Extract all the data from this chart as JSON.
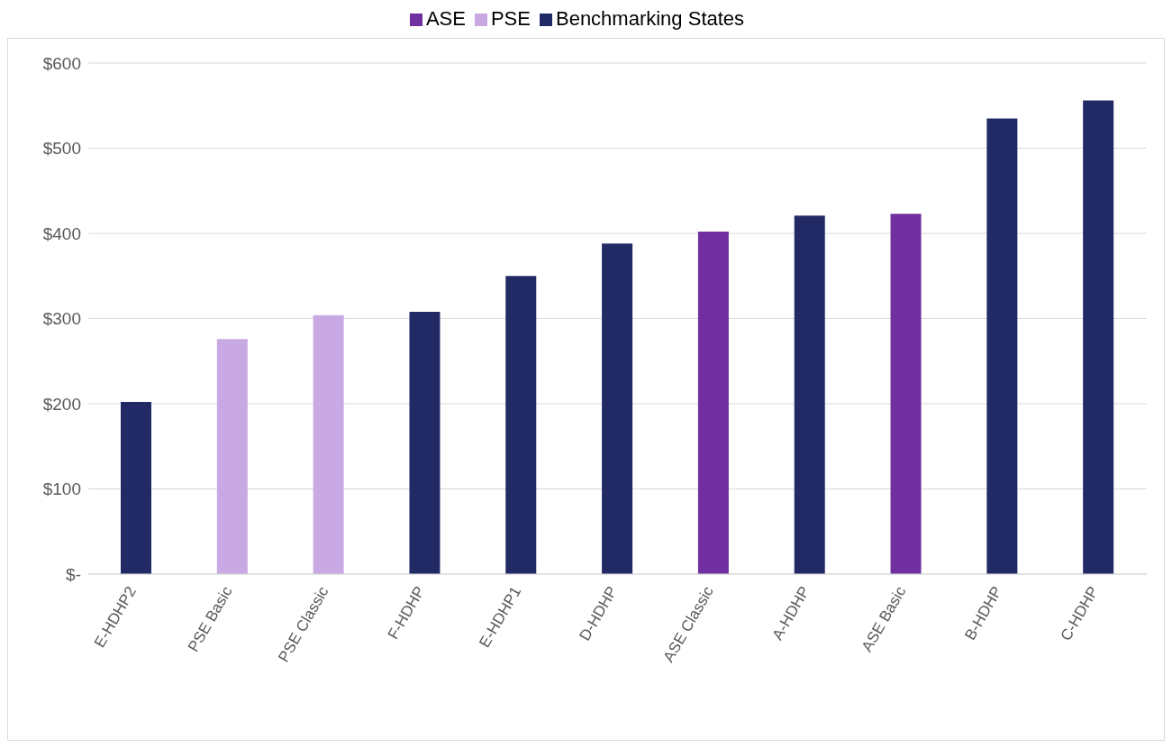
{
  "chart_data": {
    "type": "bar",
    "categories": [
      "E-HDHP2",
      "PSE Basic",
      "PSE Classic",
      "F-HDHP",
      "E-HDHP1",
      "D-HDHP",
      "ASE Classic",
      "A-HDHP",
      "ASE Basic",
      "B-HDHP",
      "C-HDHP"
    ],
    "series": [
      {
        "name": "ASE",
        "color": "#7030a0",
        "values": [
          null,
          null,
          null,
          null,
          null,
          null,
          402,
          null,
          423,
          null,
          null
        ]
      },
      {
        "name": "PSE",
        "color": "#c9a9e3",
        "values": [
          null,
          276,
          304,
          null,
          null,
          null,
          null,
          null,
          null,
          null,
          null
        ]
      },
      {
        "name": "Benchmarking States",
        "color": "#222a66",
        "values": [
          202,
          null,
          null,
          308,
          350,
          388,
          null,
          421,
          null,
          535,
          556
        ]
      }
    ],
    "ylim": [
      0,
      600
    ],
    "yticks": [
      {
        "value": 0,
        "label": "$-"
      },
      {
        "value": 100,
        "label": "$100"
      },
      {
        "value": 200,
        "label": "$200"
      },
      {
        "value": 300,
        "label": "$300"
      },
      {
        "value": 400,
        "label": "$400"
      },
      {
        "value": 500,
        "label": "$500"
      },
      {
        "value": 600,
        "label": "$600"
      }
    ],
    "grid": "y",
    "legend": "top"
  }
}
